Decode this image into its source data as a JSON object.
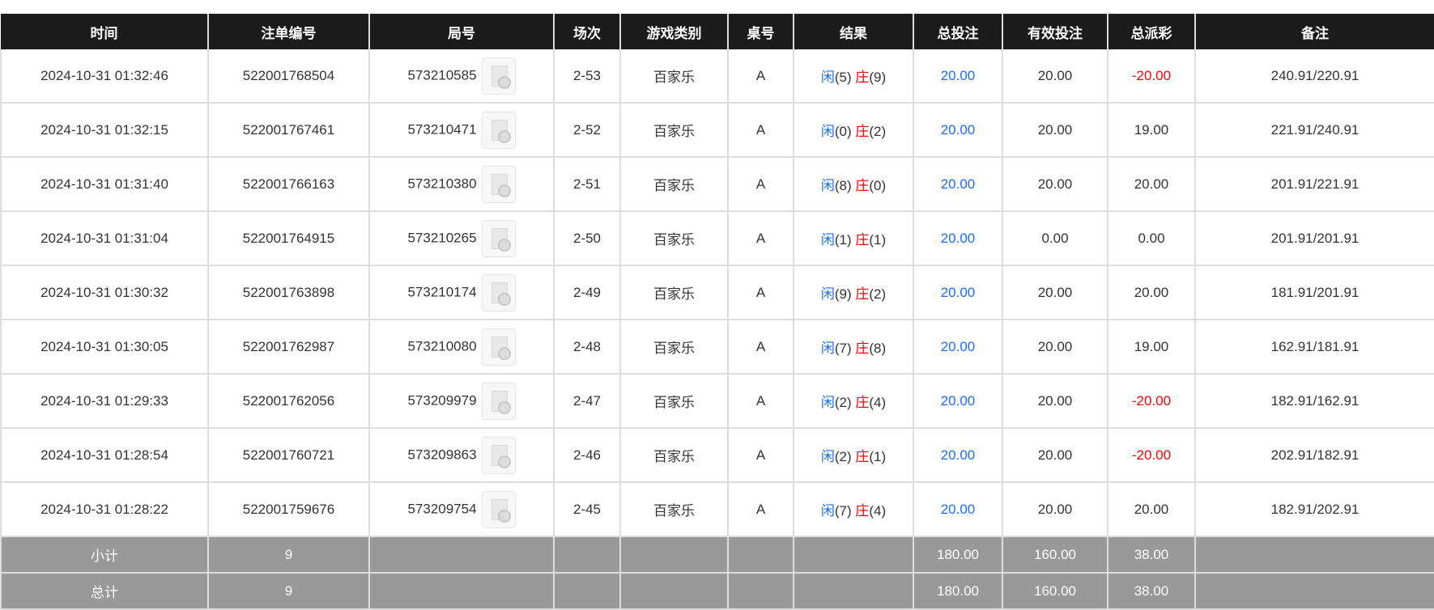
{
  "headers": [
    "时间",
    "注单编号",
    "局号",
    "场次",
    "游戏类别",
    "桌号",
    "结果",
    "总投注",
    "有效投注",
    "总派彩",
    "备注"
  ],
  "rows": [
    {
      "time": "2024-10-31 01:32:46",
      "bet_id": "522001768504",
      "round": "573210585",
      "session": "2-53",
      "game": "百家乐",
      "table": "A",
      "player_label": "闲",
      "player": "(5)",
      "banker_label": "庄",
      "banker": "(9)",
      "total_bet": "20.00",
      "valid_bet": "20.00",
      "payout": "-20.00",
      "payout_negative": true,
      "note": "240.91/220.91"
    },
    {
      "time": "2024-10-31 01:32:15",
      "bet_id": "522001767461",
      "round": "573210471",
      "session": "2-52",
      "game": "百家乐",
      "table": "A",
      "player_label": "闲",
      "player": "(0)",
      "banker_label": "庄",
      "banker": "(2)",
      "total_bet": "20.00",
      "valid_bet": "20.00",
      "payout": "19.00",
      "payout_negative": false,
      "note": "221.91/240.91"
    },
    {
      "time": "2024-10-31 01:31:40",
      "bet_id": "522001766163",
      "round": "573210380",
      "session": "2-51",
      "game": "百家乐",
      "table": "A",
      "player_label": "闲",
      "player": "(8)",
      "banker_label": "庄",
      "banker": "(0)",
      "total_bet": "20.00",
      "valid_bet": "20.00",
      "payout": "20.00",
      "payout_negative": false,
      "note": "201.91/221.91"
    },
    {
      "time": "2024-10-31 01:31:04",
      "bet_id": "522001764915",
      "round": "573210265",
      "session": "2-50",
      "game": "百家乐",
      "table": "A",
      "player_label": "闲",
      "player": "(1)",
      "banker_label": "庄",
      "banker": "(1)",
      "total_bet": "20.00",
      "valid_bet": "0.00",
      "payout": "0.00",
      "payout_negative": false,
      "note": "201.91/201.91"
    },
    {
      "time": "2024-10-31 01:30:32",
      "bet_id": "522001763898",
      "round": "573210174",
      "session": "2-49",
      "game": "百家乐",
      "table": "A",
      "player_label": "闲",
      "player": "(9)",
      "banker_label": "庄",
      "banker": "(2)",
      "total_bet": "20.00",
      "valid_bet": "20.00",
      "payout": "20.00",
      "payout_negative": false,
      "note": "181.91/201.91"
    },
    {
      "time": "2024-10-31 01:30:05",
      "bet_id": "522001762987",
      "round": "573210080",
      "session": "2-48",
      "game": "百家乐",
      "table": "A",
      "player_label": "闲",
      "player": "(7)",
      "banker_label": "庄",
      "banker": "(8)",
      "total_bet": "20.00",
      "valid_bet": "20.00",
      "payout": "19.00",
      "payout_negative": false,
      "note": "162.91/181.91"
    },
    {
      "time": "2024-10-31 01:29:33",
      "bet_id": "522001762056",
      "round": "573209979",
      "session": "2-47",
      "game": "百家乐",
      "table": "A",
      "player_label": "闲",
      "player": "(2)",
      "banker_label": "庄",
      "banker": "(4)",
      "total_bet": "20.00",
      "valid_bet": "20.00",
      "payout": "-20.00",
      "payout_negative": true,
      "note": "182.91/162.91"
    },
    {
      "time": "2024-10-31 01:28:54",
      "bet_id": "522001760721",
      "round": "573209863",
      "session": "2-46",
      "game": "百家乐",
      "table": "A",
      "player_label": "闲",
      "player": "(2)",
      "banker_label": "庄",
      "banker": "(1)",
      "total_bet": "20.00",
      "valid_bet": "20.00",
      "payout": "-20.00",
      "payout_negative": true,
      "note": "202.91/182.91"
    },
    {
      "time": "2024-10-31 01:28:22",
      "bet_id": "522001759676",
      "round": "573209754",
      "session": "2-45",
      "game": "百家乐",
      "table": "A",
      "player_label": "闲",
      "player": "(7)",
      "banker_label": "庄",
      "banker": "(4)",
      "total_bet": "20.00",
      "valid_bet": "20.00",
      "payout": "20.00",
      "payout_negative": false,
      "note": "182.91/202.91"
    }
  ],
  "subtotal": {
    "label": "小计",
    "count": "9",
    "total_bet": "180.00",
    "valid_bet": "160.00",
    "payout": "38.00"
  },
  "total": {
    "label": "总计",
    "count": "9",
    "total_bet": "180.00",
    "valid_bet": "160.00",
    "payout": "38.00"
  },
  "colors": {
    "header_bg": "#1c1c1c",
    "player": "#1a6cff",
    "banker": "#ff0000",
    "negative": "#ff0000",
    "summary_bg": "#999999"
  },
  "icons": {
    "replay": "video-file-icon"
  }
}
